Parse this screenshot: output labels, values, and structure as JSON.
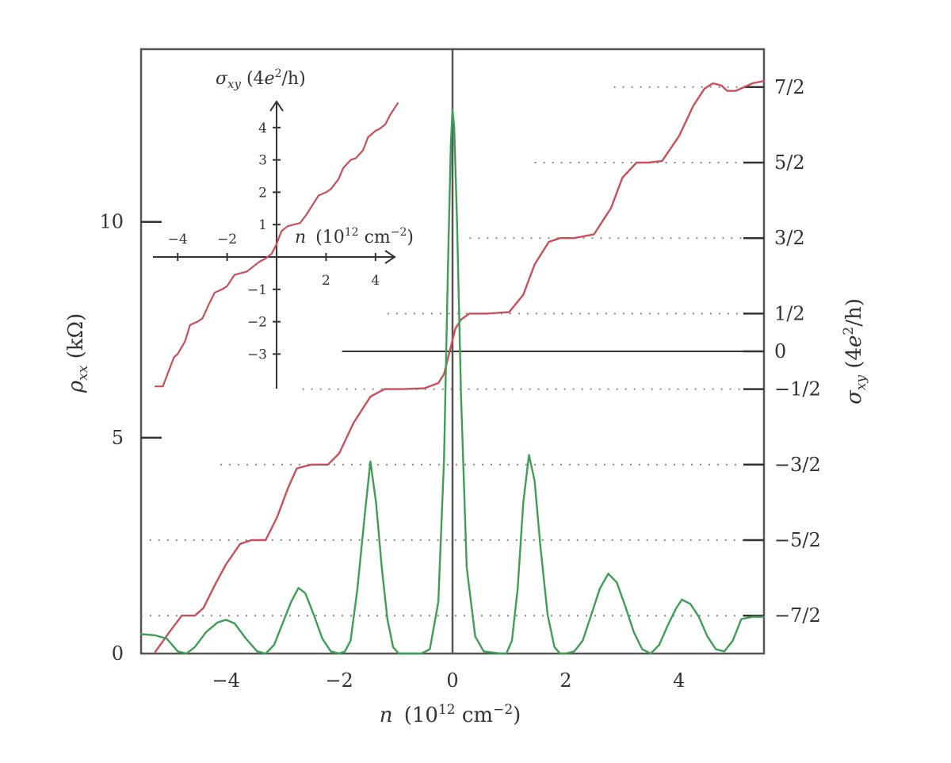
{
  "chart_data": {
    "type": "line",
    "main": {
      "x_label": "n (10¹² cm⁻²)",
      "x_label_parts": {
        "var": "n",
        "base": "(10",
        "exp": "12",
        "unit": " cm",
        "unit_exp": "−2",
        "close": ")"
      },
      "xlim": [
        -5.5,
        5.5
      ],
      "x_ticks": [
        {
          "value": -4,
          "label": "−4"
        },
        {
          "value": -2,
          "label": "−2"
        },
        {
          "value": 0,
          "label": "0"
        },
        {
          "value": 2,
          "label": "2"
        },
        {
          "value": 4,
          "label": "4"
        }
      ],
      "left_axis": {
        "label": "ρxx (kΩ)",
        "label_parts": {
          "var": "ρ",
          "sub": "xx",
          "unit": " (kΩ)"
        },
        "ylim": [
          0,
          14
        ],
        "ticks": [
          {
            "value": 0,
            "label": "0"
          },
          {
            "value": 5,
            "label": "5"
          },
          {
            "value": 10,
            "label": "10"
          }
        ]
      },
      "right_axis": {
        "label": "σxy (4e²/h)",
        "label_parts": {
          "var": "σ",
          "sub": "xy",
          "open": " (4",
          "e": "e",
          "exp": "2",
          "rest": "/h)"
        },
        "ticks": [
          {
            "value": 3.5,
            "label": "7/2"
          },
          {
            "value": 2.5,
            "label": "5/2"
          },
          {
            "value": 1.5,
            "label": "3/2"
          },
          {
            "value": 0.5,
            "label": "1/2"
          },
          {
            "value": 0,
            "label": "0"
          },
          {
            "value": -0.5,
            "label": "−1/2"
          },
          {
            "value": -1.5,
            "label": "−3/2"
          },
          {
            "value": -2.5,
            "label": "−5/2"
          },
          {
            "value": -3.5,
            "label": "−7/2"
          }
        ]
      },
      "plateau_dotted_lines": [
        {
          "sigma": 3.5,
          "x_from": 2.85
        },
        {
          "sigma": 2.5,
          "x_from": 1.45
        },
        {
          "sigma": 1.5,
          "x_from": 0.3
        },
        {
          "sigma": 0.5,
          "x_from": -1.15
        },
        {
          "sigma": -0.5,
          "x_from": -2.65
        },
        {
          "sigma": -1.5,
          "x_from": -4.1
        },
        {
          "sigma": -2.5,
          "x_from": -5.35
        },
        {
          "sigma": -3.5,
          "x_from": -5.5
        }
      ],
      "zero_line": {
        "sigma": 0,
        "x_from": -1.95
      },
      "series": [
        {
          "name": "σxy",
          "axis": "right",
          "color": "#c8505a",
          "x": [
            -5.25,
            -5.0,
            -4.78,
            -4.55,
            -4.4,
            -4.2,
            -4.0,
            -3.75,
            -3.55,
            -3.3,
            -3.1,
            -2.9,
            -2.75,
            -2.5,
            -2.2,
            -2.0,
            -1.75,
            -1.45,
            -1.2,
            -0.9,
            -0.5,
            -0.25,
            -0.15,
            -0.05,
            0.05,
            0.15,
            0.3,
            0.6,
            1.0,
            1.25,
            1.45,
            1.7,
            1.9,
            2.15,
            2.5,
            2.8,
            3.0,
            3.25,
            3.45,
            3.7,
            4.0,
            4.25,
            4.45,
            4.6,
            4.75,
            4.85,
            5.0,
            5.15,
            5.3,
            5.5
          ],
          "y": [
            -3.98,
            -3.72,
            -3.5,
            -3.5,
            -3.4,
            -3.1,
            -2.82,
            -2.55,
            -2.5,
            -2.5,
            -2.2,
            -1.8,
            -1.55,
            -1.5,
            -1.5,
            -1.35,
            -0.95,
            -0.6,
            -0.5,
            -0.5,
            -0.49,
            -0.42,
            -0.3,
            0.0,
            0.3,
            0.42,
            0.5,
            0.5,
            0.52,
            0.75,
            1.15,
            1.45,
            1.5,
            1.5,
            1.55,
            1.9,
            2.3,
            2.5,
            2.5,
            2.52,
            2.85,
            3.25,
            3.48,
            3.55,
            3.52,
            3.45,
            3.45,
            3.5,
            3.55,
            3.58
          ]
        },
        {
          "name": "ρxx",
          "axis": "left",
          "color": "#3f9e55",
          "x": [
            -5.5,
            -5.25,
            -5.05,
            -4.85,
            -4.7,
            -4.55,
            -4.35,
            -4.15,
            -4.0,
            -3.85,
            -3.65,
            -3.45,
            -3.3,
            -3.15,
            -3.0,
            -2.85,
            -2.72,
            -2.6,
            -2.45,
            -2.3,
            -2.15,
            -2.0,
            -1.9,
            -1.8,
            -1.68,
            -1.55,
            -1.45,
            -1.35,
            -1.25,
            -1.15,
            -1.05,
            -0.95,
            -0.85,
            -0.55,
            -0.4,
            -0.25,
            -0.15,
            -0.08,
            -0.03,
            0.0,
            0.03,
            0.08,
            0.15,
            0.25,
            0.4,
            0.55,
            0.85,
            0.95,
            1.05,
            1.15,
            1.25,
            1.35,
            1.45,
            1.55,
            1.68,
            1.8,
            1.9,
            2.0,
            2.15,
            2.3,
            2.45,
            2.6,
            2.75,
            2.9,
            3.05,
            3.2,
            3.35,
            3.5,
            3.65,
            3.8,
            3.95,
            4.05,
            4.2,
            4.35,
            4.5,
            4.65,
            4.8,
            4.95,
            5.1,
            5.3,
            5.5
          ],
          "y": [
            0.45,
            0.42,
            0.35,
            0.05,
            0.0,
            0.15,
            0.5,
            0.72,
            0.78,
            0.7,
            0.35,
            0.05,
            0.0,
            0.2,
            0.7,
            1.2,
            1.52,
            1.4,
            0.9,
            0.35,
            0.05,
            0.0,
            0.05,
            0.3,
            1.5,
            3.2,
            4.45,
            3.5,
            2.0,
            0.8,
            0.15,
            0.0,
            0.0,
            0.0,
            0.1,
            1.2,
            4.5,
            9.0,
            11.8,
            12.6,
            12.2,
            10.0,
            6.0,
            2.0,
            0.4,
            0.05,
            0.0,
            0.0,
            0.3,
            1.5,
            3.5,
            4.6,
            4.0,
            2.5,
            0.9,
            0.15,
            0.0,
            0.0,
            0.05,
            0.3,
            0.9,
            1.5,
            1.85,
            1.65,
            1.1,
            0.5,
            0.1,
            0.0,
            0.2,
            0.65,
            1.05,
            1.25,
            1.15,
            0.85,
            0.4,
            0.1,
            0.05,
            0.3,
            0.8,
            0.85,
            0.85
          ]
        }
      ]
    },
    "inset": {
      "y_label": "σxy (4e²/h)",
      "y_label_parts": {
        "var": "σ",
        "sub": "xy",
        "open": " (4",
        "e": "e",
        "exp": "2",
        "rest": "/h)"
      },
      "x_label": "n (10¹² cm⁻²)",
      "x_label_parts": {
        "var": "n",
        "base": "(10",
        "exp": "12",
        "unit": " cm",
        "unit_exp": "−2",
        "close": ")"
      },
      "xlim": [
        -5.0,
        5.0
      ],
      "ylim": [
        -4.0,
        4.5
      ],
      "x_ticks": [
        {
          "value": -4,
          "label": "−4"
        },
        {
          "value": -2,
          "label": "−2"
        },
        {
          "value": 2,
          "label": "2"
        },
        {
          "value": 4,
          "label": "4"
        }
      ],
      "y_ticks": [
        {
          "value": 4,
          "label": "4"
        },
        {
          "value": 3,
          "label": "3"
        },
        {
          "value": 2,
          "label": "2"
        },
        {
          "value": 1,
          "label": "1"
        },
        {
          "value": -1,
          "label": "−1"
        },
        {
          "value": -2,
          "label": "−2"
        },
        {
          "value": -3,
          "label": "−3"
        }
      ],
      "series": {
        "name": "σxy inset",
        "color": "#c8505a",
        "x": [
          -4.9,
          -4.6,
          -4.4,
          -4.15,
          -4.0,
          -3.7,
          -3.5,
          -3.2,
          -3.0,
          -2.7,
          -2.5,
          -2.2,
          -2.0,
          -1.7,
          -1.45,
          -1.2,
          -0.95,
          -0.7,
          -0.45,
          -0.2,
          0.0,
          0.2,
          0.45,
          0.7,
          0.95,
          1.2,
          1.45,
          1.7,
          2.0,
          2.2,
          2.5,
          2.7,
          3.0,
          3.2,
          3.5,
          3.7,
          4.0,
          4.15,
          4.4,
          4.6,
          4.9
        ],
        "y": [
          -4.0,
          -4.0,
          -3.6,
          -3.1,
          -3.0,
          -2.6,
          -2.1,
          -2.0,
          -1.9,
          -1.4,
          -1.1,
          -1.0,
          -0.9,
          -0.55,
          -0.5,
          -0.45,
          -0.3,
          -0.15,
          -0.05,
          0.1,
          0.4,
          0.8,
          0.95,
          1.0,
          1.05,
          1.3,
          1.6,
          1.9,
          2.0,
          2.1,
          2.4,
          2.75,
          3.0,
          3.05,
          3.3,
          3.7,
          3.9,
          3.95,
          4.1,
          4.4,
          4.75
        ]
      }
    }
  }
}
